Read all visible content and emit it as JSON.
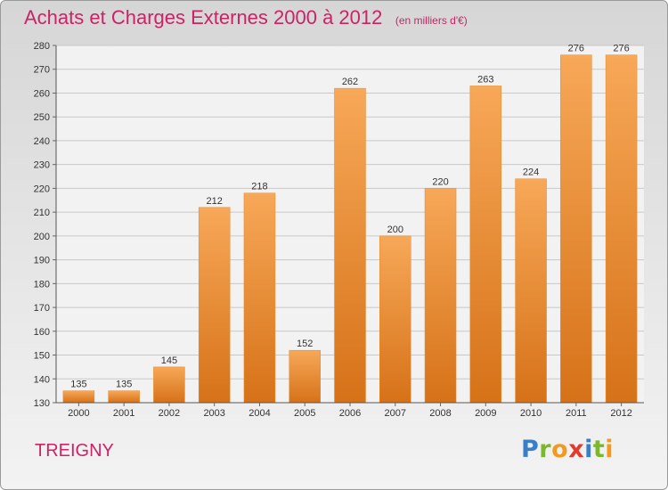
{
  "header": {
    "title": "Achats et Charges Externes 2000 à 2012",
    "subtitle": "(en milliers d'€)"
  },
  "footer": {
    "commune": "TREIGNY"
  },
  "logo": {
    "letters": [
      {
        "ch": "P",
        "color": "#3a7dc9"
      },
      {
        "ch": "r",
        "color": "#7bb82a"
      },
      {
        "ch": "o",
        "color": "#f39a1e"
      },
      {
        "ch": "x",
        "color": "#e23b2e"
      },
      {
        "ch": "i",
        "color": "#3a7dc9"
      },
      {
        "ch": "t",
        "color": "#7bb82a"
      },
      {
        "ch": "i",
        "color": "#f39a1e"
      }
    ]
  },
  "colors": {
    "title": "#cc2266",
    "bar_top": "#f7a858",
    "bar_bottom": "#d67218",
    "grid": "#c8c8c8",
    "plot_background": "#f2f2f2"
  },
  "chart_data": {
    "type": "bar",
    "title": "Achats et Charges Externes 2000 à 2012",
    "subtitle": "(en milliers d'€)",
    "xlabel": "",
    "ylabel": "",
    "categories": [
      "2000",
      "2001",
      "2002",
      "2003",
      "2004",
      "2005",
      "2006",
      "2007",
      "2008",
      "2009",
      "2010",
      "2011",
      "2012"
    ],
    "values": [
      135,
      135,
      145,
      212,
      218,
      152,
      262,
      200,
      220,
      263,
      224,
      276,
      276
    ],
    "ylim": [
      130,
      280
    ],
    "yticks": [
      130,
      140,
      150,
      160,
      170,
      180,
      190,
      200,
      210,
      220,
      230,
      240,
      250,
      260,
      270,
      280
    ],
    "grid": true,
    "legend": "none"
  }
}
